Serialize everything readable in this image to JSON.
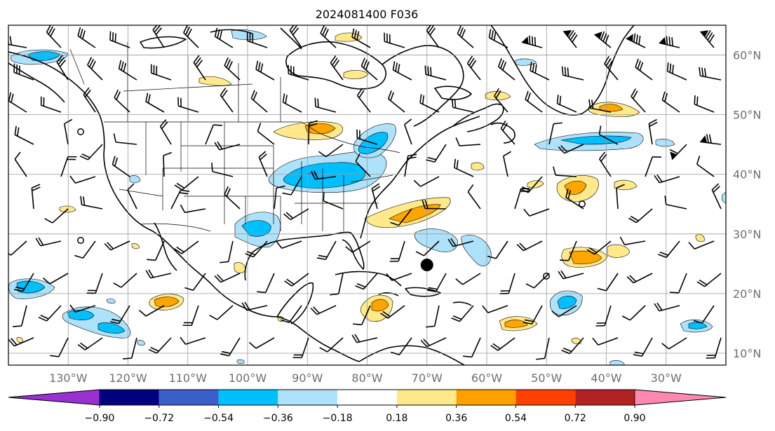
{
  "title": "2024081400 F036",
  "map": {
    "lon_range": [
      -140,
      -20
    ],
    "lat_range": [
      8,
      65
    ],
    "lon_ticks": [
      {
        "lon": -130,
        "label": "130°W"
      },
      {
        "lon": -120,
        "label": "120°W"
      },
      {
        "lon": -110,
        "label": "110°W"
      },
      {
        "lon": -100,
        "label": "100°W"
      },
      {
        "lon": -90,
        "label": "90°W"
      },
      {
        "lon": -80,
        "label": "80°W"
      },
      {
        "lon": -70,
        "label": "70°W"
      },
      {
        "lon": -60,
        "label": "60°W"
      },
      {
        "lon": -50,
        "label": "50°W"
      },
      {
        "lon": -40,
        "label": "40°W"
      },
      {
        "lon": -30,
        "label": "30°W"
      }
    ],
    "lat_ticks": [
      {
        "lat": 60,
        "label": "60°N"
      },
      {
        "lat": 50,
        "label": "50°N"
      },
      {
        "lat": 40,
        "label": "40°N"
      },
      {
        "lat": 30,
        "label": "30°N"
      },
      {
        "lat": 20,
        "label": "20°N"
      },
      {
        "lat": 10,
        "label": "10°N"
      }
    ],
    "gridlines": true,
    "storm_marker": {
      "lon": -70,
      "lat": 24.8
    }
  },
  "colorbar": {
    "levels": [
      "−0.90",
      "−0.72",
      "−0.54",
      "−0.36",
      "−0.18",
      "0.18",
      "0.36",
      "0.54",
      "0.72",
      "0.90"
    ],
    "colors": [
      "#9b30d0",
      "#000080",
      "#3a5fcd",
      "#00bfff",
      "#aee2fb",
      "#ffffff",
      "#ffe98a",
      "#ffa000",
      "#ff4000",
      "#b22222",
      "#ff88b0"
    ],
    "extend": "both"
  },
  "field_colors": {
    "neg_light": "#aee2fb",
    "neg_mid": "#00bfff",
    "pos_light": "#ffe98a",
    "pos_mid": "#ffa500",
    "neg_deep": "#9b30d0"
  }
}
